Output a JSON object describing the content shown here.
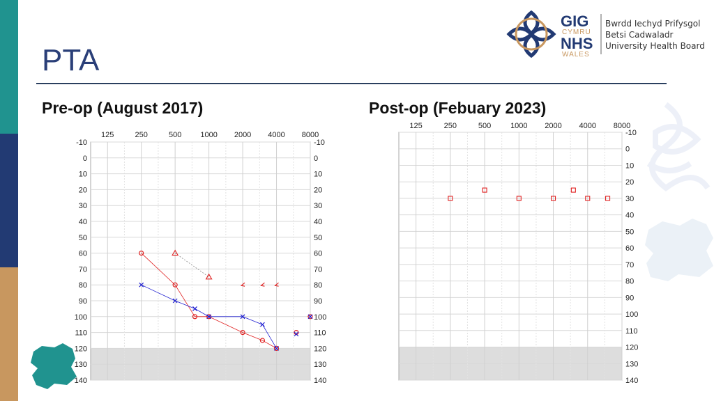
{
  "slide": {
    "title": "PTA",
    "left_subtitle": "Pre-op (August 2017)",
    "right_subtitle": "Post-op (Febuary 2023)"
  },
  "logo": {
    "gig": "GIG",
    "cymru": "CYMRU",
    "nhs": "NHS",
    "wales": "WALES",
    "line1": "Bwrdd Iechyd Prifysgol",
    "line2": "Betsi Cadwaladr",
    "line3": "University Health Board"
  },
  "colors": {
    "teal": "#20938f",
    "navy": "#223a73",
    "tan": "#c8975f",
    "right_ear": "#e02020",
    "left_ear": "#2020d0",
    "grey_zone": "#dddddd"
  },
  "chart_data": [
    {
      "type": "scatter",
      "name": "Pre-op audiogram",
      "x_ticks": [
        "125",
        "250",
        "500",
        "1000",
        "2000",
        "4000",
        "8000"
      ],
      "y_ticks": [
        "-10",
        "0",
        "10",
        "20",
        "30",
        "40",
        "50",
        "60",
        "70",
        "80",
        "90",
        "100",
        "110",
        "120",
        "130",
        "140"
      ],
      "ylim": [
        -10,
        140
      ],
      "y_inverted": true,
      "shaded_range": [
        120,
        140
      ],
      "series": [
        {
          "symbol": "circle",
          "color": "#e02020",
          "connected": true,
          "points": [
            [
              250,
              60
            ],
            [
              500,
              80
            ],
            [
              750,
              100
            ],
            [
              1000,
              100
            ],
            [
              2000,
              110
            ],
            [
              3000,
              115
            ],
            [
              4000,
              120
            ]
          ]
        },
        {
          "symbol": "circle",
          "color": "#e02020",
          "connected": false,
          "points": [
            [
              6000,
              110
            ],
            [
              8000,
              100
            ]
          ]
        },
        {
          "symbol": "x",
          "color": "#2020d0",
          "connected": true,
          "points": [
            [
              250,
              80
            ],
            [
              500,
              90
            ],
            [
              750,
              95
            ],
            [
              1000,
              100
            ],
            [
              2000,
              100
            ],
            [
              3000,
              105
            ],
            [
              4000,
              120
            ]
          ]
        },
        {
          "symbol": "x",
          "color": "#2020d0",
          "connected": false,
          "points": [
            [
              6000,
              111
            ],
            [
              8000,
              100
            ]
          ]
        },
        {
          "symbol": "triangle",
          "color": "#e02020",
          "connected": true,
          "dotted": true,
          "points": [
            [
              500,
              60
            ],
            [
              1000,
              75
            ]
          ]
        },
        {
          "symbol": "bracket",
          "color": "#e02020",
          "connected": false,
          "points": [
            [
              2000,
              80
            ],
            [
              3000,
              80
            ],
            [
              4000,
              80
            ]
          ]
        }
      ]
    },
    {
      "type": "scatter",
      "name": "Post-op audiogram",
      "x_ticks": [
        "125",
        "250",
        "500",
        "1000",
        "2000",
        "4000",
        "8000"
      ],
      "y_ticks": [
        "-10",
        "0",
        "10",
        "20",
        "30",
        "40",
        "50",
        "60",
        "70",
        "80",
        "90",
        "100",
        "110",
        "120",
        "130",
        "140"
      ],
      "ylim": [
        -10,
        140
      ],
      "y_inverted": true,
      "shaded_range": [
        120,
        140
      ],
      "series": [
        {
          "symbol": "square",
          "color": "#e02020",
          "connected": false,
          "points": [
            [
              250,
              30
            ],
            [
              500,
              25
            ],
            [
              1000,
              30
            ],
            [
              2000,
              30
            ],
            [
              3000,
              25
            ],
            [
              4000,
              30
            ],
            [
              6000,
              30
            ]
          ]
        }
      ]
    }
  ]
}
